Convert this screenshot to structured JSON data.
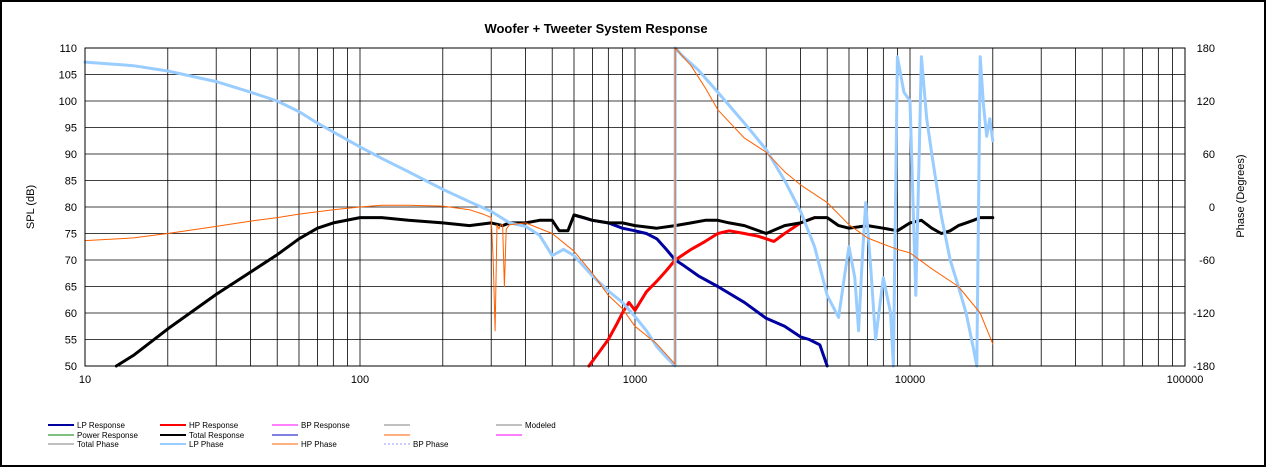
{
  "chart_data": {
    "type": "line",
    "title": "Woofer + Tweeter    System Response",
    "xlabel": "",
    "ylabel": "SPL (dB)",
    "y2label": "Phase (Degrees)",
    "xscale": "log",
    "xlim": [
      10,
      100000
    ],
    "ylim": [
      50,
      110
    ],
    "y2lim": [
      -180,
      180
    ],
    "x_ticks": [
      "10",
      "100",
      "1000",
      "10000",
      "100000"
    ],
    "y_ticks": [
      "50",
      "55",
      "60",
      "65",
      "70",
      "75",
      "80",
      "85",
      "90",
      "95",
      "100",
      "105",
      "110"
    ],
    "y2_ticks": [
      "-180",
      "-120",
      "-60",
      "0",
      "60",
      "120",
      "180"
    ],
    "grid": true,
    "series": [
      {
        "name": "LP Response",
        "axis": "left",
        "color": "#0000a0",
        "width": 3,
        "x": [
          600,
          700,
          800,
          900,
          1000,
          1100,
          1200,
          1300,
          1400,
          1500,
          1700,
          2000,
          2500,
          3000,
          3500,
          4000,
          4300,
          4700,
          5000
        ],
        "y": [
          78.5,
          77.5,
          77,
          76,
          75.5,
          75,
          74,
          72,
          70,
          69,
          67,
          65,
          62,
          59,
          57.5,
          55.5,
          55,
          54,
          50
        ]
      },
      {
        "name": "HP Response",
        "axis": "left",
        "color": "#ff0000",
        "width": 3,
        "x": [
          680,
          750,
          800,
          860,
          900,
          950,
          1000,
          1100,
          1200,
          1300,
          1400,
          1600,
          1800,
          2000,
          2200,
          2500,
          2800,
          3000,
          3200,
          3500,
          4000,
          4500
        ],
        "y": [
          50,
          53,
          55,
          58,
          60,
          62,
          60.5,
          64,
          66,
          68,
          70,
          72,
          73.5,
          75,
          75.5,
          75,
          74.5,
          74,
          73.5,
          75,
          77,
          78
        ]
      },
      {
        "name": "BP Response",
        "axis": "left",
        "color": "#ff00ff",
        "width": 2,
        "x": [],
        "y": []
      },
      {
        "name": "",
        "axis": "left",
        "color": "#808080",
        "width": 2,
        "x": [],
        "y": []
      },
      {
        "name": "Modeled",
        "axis": "left",
        "color": "#808080",
        "width": 2,
        "x": [],
        "y": []
      },
      {
        "name": "Power Response",
        "axis": "left",
        "color": "#008000",
        "width": 2,
        "x": [],
        "y": []
      },
      {
        "name": "Total Response",
        "axis": "left",
        "color": "#000000",
        "width": 3,
        "x": [
          13,
          15,
          20,
          30,
          50,
          60,
          70,
          80,
          100,
          120,
          150,
          200,
          250,
          300,
          330,
          350,
          400,
          450,
          500,
          530,
          570,
          600,
          650,
          700,
          800,
          900,
          1000,
          1200,
          1400,
          1600,
          1800,
          2000,
          2200,
          2500,
          3000,
          3500,
          4000,
          4500,
          5000,
          5500,
          6000,
          7000,
          8000,
          9000,
          10000,
          11000,
          12000,
          13000,
          14000,
          15000,
          16000,
          17000,
          18000,
          19000,
          20000
        ],
        "y": [
          50,
          52,
          57,
          63.5,
          71,
          74,
          76,
          77,
          78,
          78,
          77.5,
          77,
          76.5,
          77,
          76.5,
          77,
          77,
          77.5,
          77.5,
          75.5,
          75.5,
          78.5,
          78,
          77.5,
          77,
          77,
          76.5,
          76,
          76.5,
          77,
          77.5,
          77.5,
          77,
          76.5,
          75,
          76.5,
          77,
          78,
          78,
          76.5,
          76,
          76.5,
          76,
          75.5,
          77,
          77.5,
          76,
          75,
          75.5,
          76.5,
          77,
          77.5,
          78,
          78,
          78
        ]
      },
      {
        "name": "",
        "axis": "left",
        "color": "#0000c0",
        "width": 1,
        "x": [],
        "y": []
      },
      {
        "name": "",
        "axis": "left",
        "color": "#ff6000",
        "width": 1,
        "x": [],
        "y": []
      },
      {
        "name": "",
        "axis": "left",
        "color": "#ff00ff",
        "width": 1,
        "x": [],
        "y": []
      },
      {
        "name": "Total Phase",
        "axis": "right",
        "color": "#808080",
        "width": 2,
        "x": [
          1399,
          1400,
          1401
        ],
        "y": [
          -180,
          180,
          -180
        ]
      },
      {
        "name": "LP Phase",
        "axis": "right",
        "color": "#99ccff",
        "width": 3,
        "x": [
          10,
          15,
          20,
          30,
          40,
          50,
          60,
          70,
          80,
          100,
          120,
          150,
          200,
          250,
          300,
          350,
          400,
          450,
          500,
          550,
          600,
          700,
          800,
          900,
          1000,
          1100,
          1200,
          1300,
          1399,
          1400,
          1500,
          1700,
          2000,
          2500,
          3000,
          3500,
          4000,
          4500,
          5000,
          5500,
          5800,
          6000,
          6300,
          6500,
          6700,
          6900,
          7200,
          7500,
          8000,
          8500,
          8700,
          9000,
          9500,
          10000,
          10500,
          10800,
          11000,
          11500,
          12000,
          13000,
          14000,
          15000,
          16000,
          17000,
          17500,
          18000,
          18500,
          19000,
          19500,
          20000
        ],
        "y": [
          164,
          160,
          154,
          142,
          130,
          120,
          108,
          95,
          85,
          68,
          55,
          40,
          20,
          6,
          -5,
          -18,
          -22,
          -32,
          -55,
          -48,
          -55,
          -78,
          -95,
          -108,
          -124,
          -140,
          -158,
          -170,
          -180,
          180,
          170,
          155,
          130,
          95,
          65,
          30,
          -5,
          -45,
          -100,
          -125,
          -75,
          -45,
          -80,
          -140,
          -60,
          5,
          -70,
          -150,
          -80,
          -120,
          -180,
          170,
          130,
          120,
          -100,
          60,
          170,
          100,
          60,
          -10,
          -60,
          -90,
          -120,
          -160,
          -180,
          170,
          115,
          80,
          100,
          75
        ]
      },
      {
        "name": "HP Phase",
        "axis": "right",
        "color": "#ff6000",
        "width": 1,
        "x": [
          10,
          15,
          20,
          30,
          40,
          50,
          60,
          80,
          100,
          120,
          150,
          200,
          250,
          280,
          300,
          305,
          310,
          315,
          320,
          325,
          330,
          335,
          340,
          350,
          400,
          500,
          600,
          700,
          800,
          900,
          1000,
          1200,
          1399,
          1400,
          1600,
          1800,
          2000,
          2500,
          3000,
          3500,
          4000,
          5000,
          6000,
          7000,
          8000,
          9000,
          10000,
          12000,
          15000,
          18000,
          20000
        ],
        "y": [
          -38,
          -35,
          -30,
          -22,
          -16,
          -12,
          -8,
          -3,
          0,
          2,
          2,
          1,
          -3,
          -8,
          -12,
          -60,
          -140,
          -20,
          -25,
          -20,
          -20,
          -90,
          -25,
          -20,
          -18,
          -30,
          -50,
          -75,
          -100,
          -115,
          -135,
          -155,
          -178,
          180,
          160,
          135,
          110,
          78,
          62,
          40,
          25,
          5,
          -20,
          -35,
          -42,
          -48,
          -52,
          -70,
          -90,
          -120,
          -155
        ]
      },
      {
        "name": "BP Phase",
        "axis": "right",
        "color": "#9999ff",
        "width": 1,
        "dash": "2,2",
        "x": [],
        "y": []
      }
    ]
  }
}
